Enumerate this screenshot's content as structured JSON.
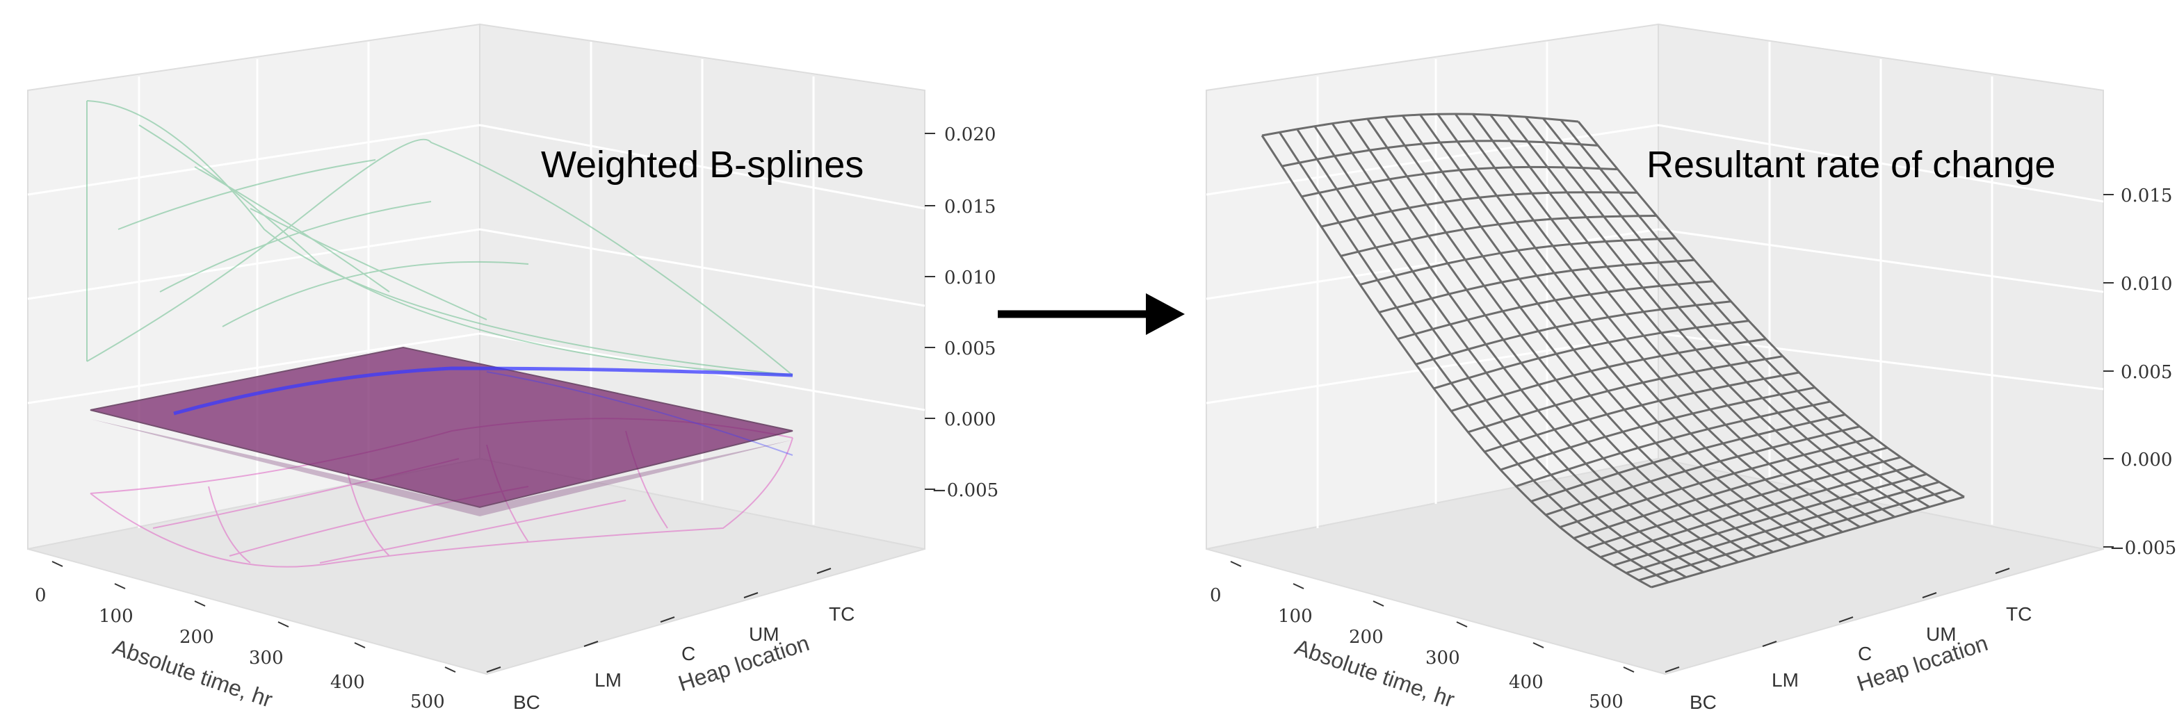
{
  "chart_data": [
    {
      "type": "surface",
      "title": "Weighted B-splines",
      "xlabel": "Absolute time, hr",
      "ylabel": "Heap location",
      "zlabel": "",
      "x_ticks": [
        0,
        100,
        200,
        300,
        400,
        500
      ],
      "y_ticks": [
        "BC",
        "LM",
        "C",
        "UM",
        "TC"
      ],
      "z_ticks": [
        "−0.005",
        "0.000",
        "0.005",
        "0.010",
        "0.015",
        "0.020"
      ],
      "xlim": [
        0,
        500
      ],
      "zlim": [
        -0.009,
        0.022
      ],
      "grid": true,
      "series": [
        {
          "color": "#6cbf8f",
          "z_corners": {
            "t0_BC": 0.02,
            "t500_BC": 0.005,
            "t0_TC": 0.004,
            "t500_TC": 0.0025,
            "peak": {
              "t": 350,
              "y": "TC",
              "z": 0.017
            }
          }
        },
        {
          "color": "#3a3aff",
          "z_corners": {
            "t0_BC": 0.0,
            "t500_BC": 0.0,
            "t0_TC": 0.0,
            "t500_TC": 0.0025
          }
        },
        {
          "color": "#7a2a6e",
          "z_corners": {
            "t0_BC": 0.0,
            "t500_BC": -0.001,
            "t0_TC": 0.0,
            "t500_TC": -0.0005
          }
        },
        {
          "color": "#e070c8",
          "z_corners": {
            "t0_BC": -0.005,
            "t500_BC": -0.005,
            "t0_TC": -0.002,
            "t500_TC": -0.002,
            "trough": {
              "t": 150,
              "y": "BC",
              "z": -0.01
            }
          }
        }
      ]
    },
    {
      "type": "surface",
      "title": "Resultant rate of change",
      "xlabel": "Absolute time, hr",
      "ylabel": "Heap location",
      "zlabel": "",
      "x_ticks": [
        0,
        100,
        200,
        300,
        400,
        500
      ],
      "y_ticks": [
        "BC",
        "LM",
        "C",
        "UM",
        "TC"
      ],
      "z_ticks": [
        "−0.005",
        "0.000",
        "0.005",
        "0.010",
        "0.015"
      ],
      "xlim": [
        0,
        500
      ],
      "zlim": [
        -0.006,
        0.019
      ],
      "grid": true,
      "series": [
        {
          "color": "#555555",
          "z_corners": {
            "t0_BC": 0.017,
            "t0_TC": 0.018,
            "t500_BC": -0.004,
            "t500_TC": -0.002,
            "trough": {
              "t": 300,
              "z": -0.005
            }
          }
        }
      ]
    }
  ],
  "arrow": {
    "color": "#000000"
  }
}
